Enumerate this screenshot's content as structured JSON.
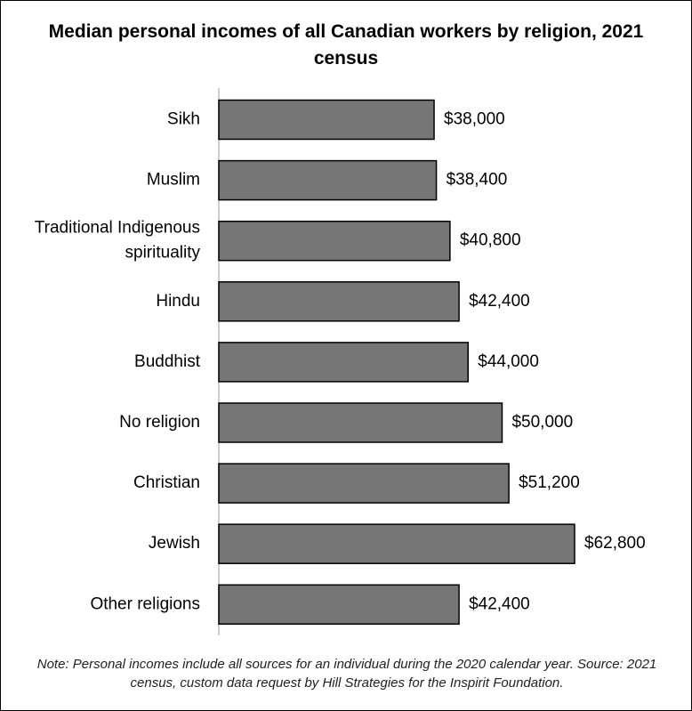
{
  "chart_data": {
    "type": "bar",
    "orientation": "horizontal",
    "title": "Median personal incomes of all Canadian workers by religion, 2021 census",
    "categories": [
      "Sikh",
      "Muslim",
      "Traditional Indigenous spirituality",
      "Hindu",
      "Buddhist",
      "No religion",
      "Christian",
      "Jewish",
      "Other religions"
    ],
    "category_lines": [
      [
        "Sikh"
      ],
      [
        "Muslim"
      ],
      [
        "Traditional Indigenous",
        "spirituality"
      ],
      [
        "Hindu"
      ],
      [
        "Buddhist"
      ],
      [
        "No religion"
      ],
      [
        "Christian"
      ],
      [
        "Jewish"
      ],
      [
        "Other religions"
      ]
    ],
    "values": [
      38000,
      38400,
      40800,
      42400,
      44000,
      50000,
      51200,
      62800,
      42400
    ],
    "data_labels": [
      "$38,000",
      "$38,400",
      "$40,800",
      "$42,400",
      "$44,000",
      "$50,000",
      "$51,200",
      "$62,800",
      "$42,400"
    ],
    "xlim": [
      0,
      62800
    ],
    "grid": false,
    "legend": "none",
    "colors": {
      "bar_fill": "#767676",
      "bar_stroke": "#000000",
      "axis": "#bfbfbf"
    }
  },
  "note": "Note: Personal incomes include all sources for an individual during the 2020 calendar year. Source: 2021 census, custom data request by Hill Strategies for the Inspirit Foundation."
}
